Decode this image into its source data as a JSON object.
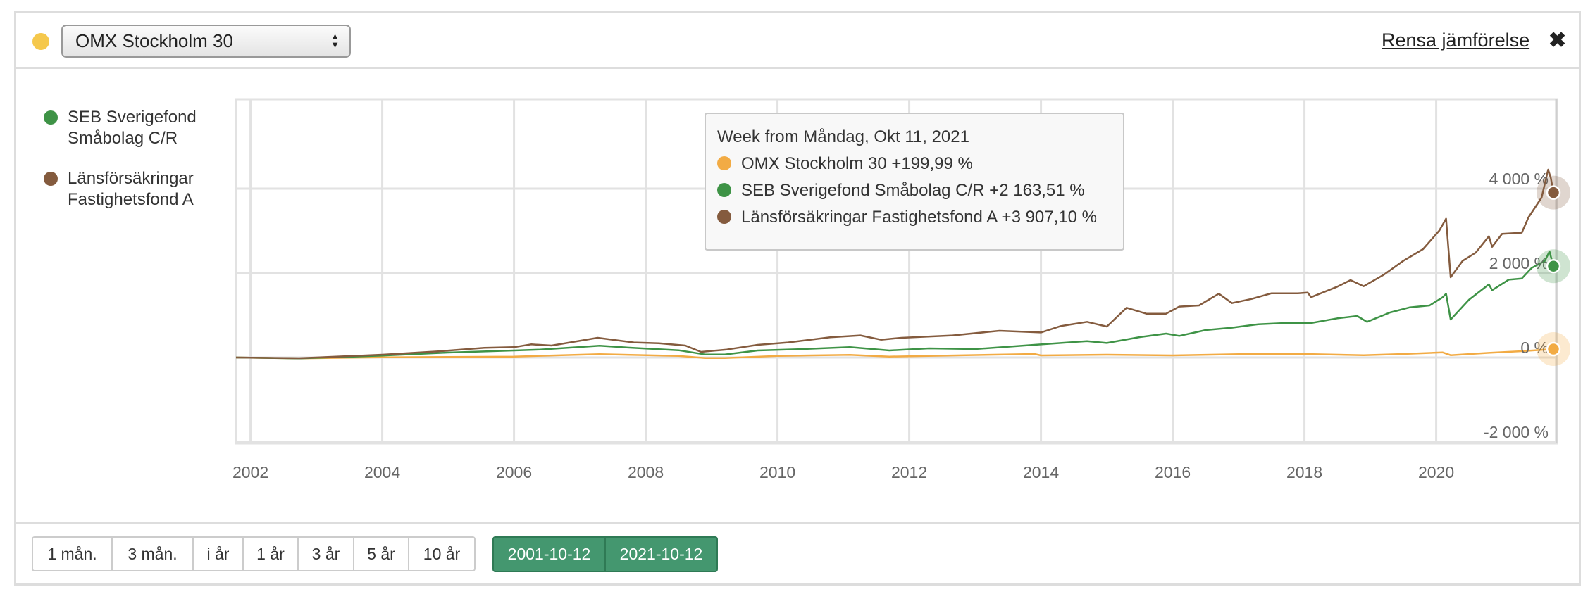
{
  "header": {
    "selector_value": "OMX Stockholm 30",
    "selector_color": "#f5c84c",
    "clear_label": "Rensa jämförelse",
    "close_icon": "close-icon"
  },
  "legend": [
    {
      "label_line1": "SEB Sverigefond",
      "label_line2": "Småbolag C/R",
      "color": "#3e9346"
    },
    {
      "label_line1": "Länsförsäkringar",
      "label_line2": "Fastighetsfond A",
      "color": "#845b3e"
    }
  ],
  "tooltip": {
    "title": "Week from Måndag, Okt 11, 2021",
    "rows": [
      {
        "label": "OMX Stockholm 30 +199,99 %",
        "color": "#f2ab44"
      },
      {
        "label": "SEB Sverigefond Småbolag C/R +2 163,51 %",
        "color": "#3e9346"
      },
      {
        "label": "Länsförsäkringar Fastighetsfond A +3 907,10 %",
        "color": "#845b3e"
      }
    ]
  },
  "footer": {
    "ranges": [
      "1 mån.",
      "3 mån.",
      "i år",
      "1 år",
      "3 år",
      "5 år",
      "10 år"
    ],
    "date_from": "2001-10-12",
    "date_to": "2021-10-12"
  },
  "chart_data": {
    "type": "line",
    "title": "",
    "xlabel": "",
    "ylabel": "",
    "xlim": [
      2001.78,
      2021.78
    ],
    "ylim": [
      -2000,
      6000
    ],
    "grid": true,
    "x_ticks": [
      2002,
      2004,
      2006,
      2008,
      2010,
      2012,
      2014,
      2016,
      2018,
      2020
    ],
    "x_tick_labels": [
      "2002",
      "2004",
      "2006",
      "2008",
      "2010",
      "2012",
      "2014",
      "2016",
      "2018",
      "2020"
    ],
    "y_ticks": [
      4000,
      2000,
      0,
      -2000
    ],
    "y_tick_labels": [
      "4 000 %",
      "2 000 %",
      "0 %",
      "-2 000 %"
    ],
    "series": [
      {
        "name": "OMX Stockholm 30",
        "color": "#f2ab44",
        "points": [
          [
            2001.78,
            0
          ],
          [
            2002.74,
            -22
          ],
          [
            2004,
            5
          ],
          [
            2006,
            22
          ],
          [
            2007.3,
            78
          ],
          [
            2008.5,
            39
          ],
          [
            2008.9,
            -11
          ],
          [
            2009.2,
            -11
          ],
          [
            2010,
            39
          ],
          [
            2011.1,
            61
          ],
          [
            2011.7,
            22
          ],
          [
            2012.5,
            44
          ],
          [
            2013.9,
            83
          ],
          [
            2014,
            50
          ],
          [
            2015,
            67
          ],
          [
            2016,
            50
          ],
          [
            2017,
            78
          ],
          [
            2018,
            83
          ],
          [
            2018.9,
            55
          ],
          [
            2019.5,
            83
          ],
          [
            2020.1,
            120
          ],
          [
            2020.22,
            55
          ],
          [
            2020.8,
            110
          ],
          [
            2021.3,
            150
          ],
          [
            2021.78,
            199.99
          ]
        ]
      },
      {
        "name": "SEB Sverigefond Småbolag C/R",
        "color": "#3e9346",
        "points": [
          [
            2001.78,
            0
          ],
          [
            2002.74,
            -22
          ],
          [
            2004,
            45
          ],
          [
            2005,
            117
          ],
          [
            2006,
            167
          ],
          [
            2006.4,
            189
          ],
          [
            2007.3,
            278
          ],
          [
            2007.8,
            228
          ],
          [
            2008.5,
            172
          ],
          [
            2008.9,
            72
          ],
          [
            2009.2,
            72
          ],
          [
            2009.7,
            167
          ],
          [
            2010.4,
            200
          ],
          [
            2011.1,
            245
          ],
          [
            2011.7,
            167
          ],
          [
            2012.3,
            217
          ],
          [
            2013,
            200
          ],
          [
            2013.9,
            300
          ],
          [
            2014.7,
            389
          ],
          [
            2015,
            344
          ],
          [
            2015.5,
            483
          ],
          [
            2015.9,
            567
          ],
          [
            2016.1,
            511
          ],
          [
            2016.5,
            650
          ],
          [
            2016.9,
            706
          ],
          [
            2017.3,
            789
          ],
          [
            2017.7,
            817
          ],
          [
            2018.1,
            817
          ],
          [
            2018.5,
            928
          ],
          [
            2018.8,
            983
          ],
          [
            2018.95,
            845
          ],
          [
            2019.3,
            1067
          ],
          [
            2019.6,
            1189
          ],
          [
            2019.9,
            1233
          ],
          [
            2020.1,
            1428
          ],
          [
            2020.15,
            1511
          ],
          [
            2020.22,
            900
          ],
          [
            2020.5,
            1372
          ],
          [
            2020.8,
            1733
          ],
          [
            2020.85,
            1595
          ],
          [
            2021.1,
            1844
          ],
          [
            2021.3,
            1872
          ],
          [
            2021.45,
            2122
          ],
          [
            2021.65,
            2289
          ],
          [
            2021.72,
            2511
          ],
          [
            2021.78,
            2163.51
          ]
        ]
      },
      {
        "name": "Länsförsäkringar Fastighetsfond A",
        "color": "#845b3e",
        "points": [
          [
            2001.78,
            0
          ],
          [
            2002.74,
            -17
          ],
          [
            2004,
            67
          ],
          [
            2004.85,
            145
          ],
          [
            2005.55,
            228
          ],
          [
            2006,
            245
          ],
          [
            2006.26,
            311
          ],
          [
            2006.57,
            283
          ],
          [
            2007.27,
            467
          ],
          [
            2007.82,
            356
          ],
          [
            2008.2,
            339
          ],
          [
            2008.6,
            284
          ],
          [
            2008.84,
            133
          ],
          [
            2009.23,
            189
          ],
          [
            2009.7,
            300
          ],
          [
            2010.16,
            356
          ],
          [
            2010.8,
            478
          ],
          [
            2011.26,
            523
          ],
          [
            2011.57,
            422
          ],
          [
            2011.88,
            467
          ],
          [
            2012.66,
            523
          ],
          [
            2013.37,
            634
          ],
          [
            2014,
            594
          ],
          [
            2014.3,
            745
          ],
          [
            2014.7,
            845
          ],
          [
            2015,
            733
          ],
          [
            2015.3,
            1178
          ],
          [
            2015.6,
            1039
          ],
          [
            2015.9,
            1039
          ],
          [
            2016.1,
            1206
          ],
          [
            2016.4,
            1233
          ],
          [
            2016.7,
            1511
          ],
          [
            2016.9,
            1289
          ],
          [
            2017.2,
            1389
          ],
          [
            2017.5,
            1522
          ],
          [
            2017.9,
            1522
          ],
          [
            2018.05,
            1539
          ],
          [
            2018.1,
            1428
          ],
          [
            2018.5,
            1678
          ],
          [
            2018.7,
            1833
          ],
          [
            2018.9,
            1689
          ],
          [
            2019.2,
            1956
          ],
          [
            2019.5,
            2289
          ],
          [
            2019.8,
            2567
          ],
          [
            2020.05,
            3011
          ],
          [
            2020.15,
            3289
          ],
          [
            2020.22,
            1900
          ],
          [
            2020.4,
            2289
          ],
          [
            2020.6,
            2483
          ],
          [
            2020.8,
            2872
          ],
          [
            2020.85,
            2622
          ],
          [
            2021.0,
            2928
          ],
          [
            2021.3,
            2956
          ],
          [
            2021.4,
            3317
          ],
          [
            2021.6,
            3789
          ],
          [
            2021.7,
            4450
          ],
          [
            2021.74,
            4250
          ],
          [
            2021.78,
            3907.1
          ]
        ]
      }
    ]
  }
}
